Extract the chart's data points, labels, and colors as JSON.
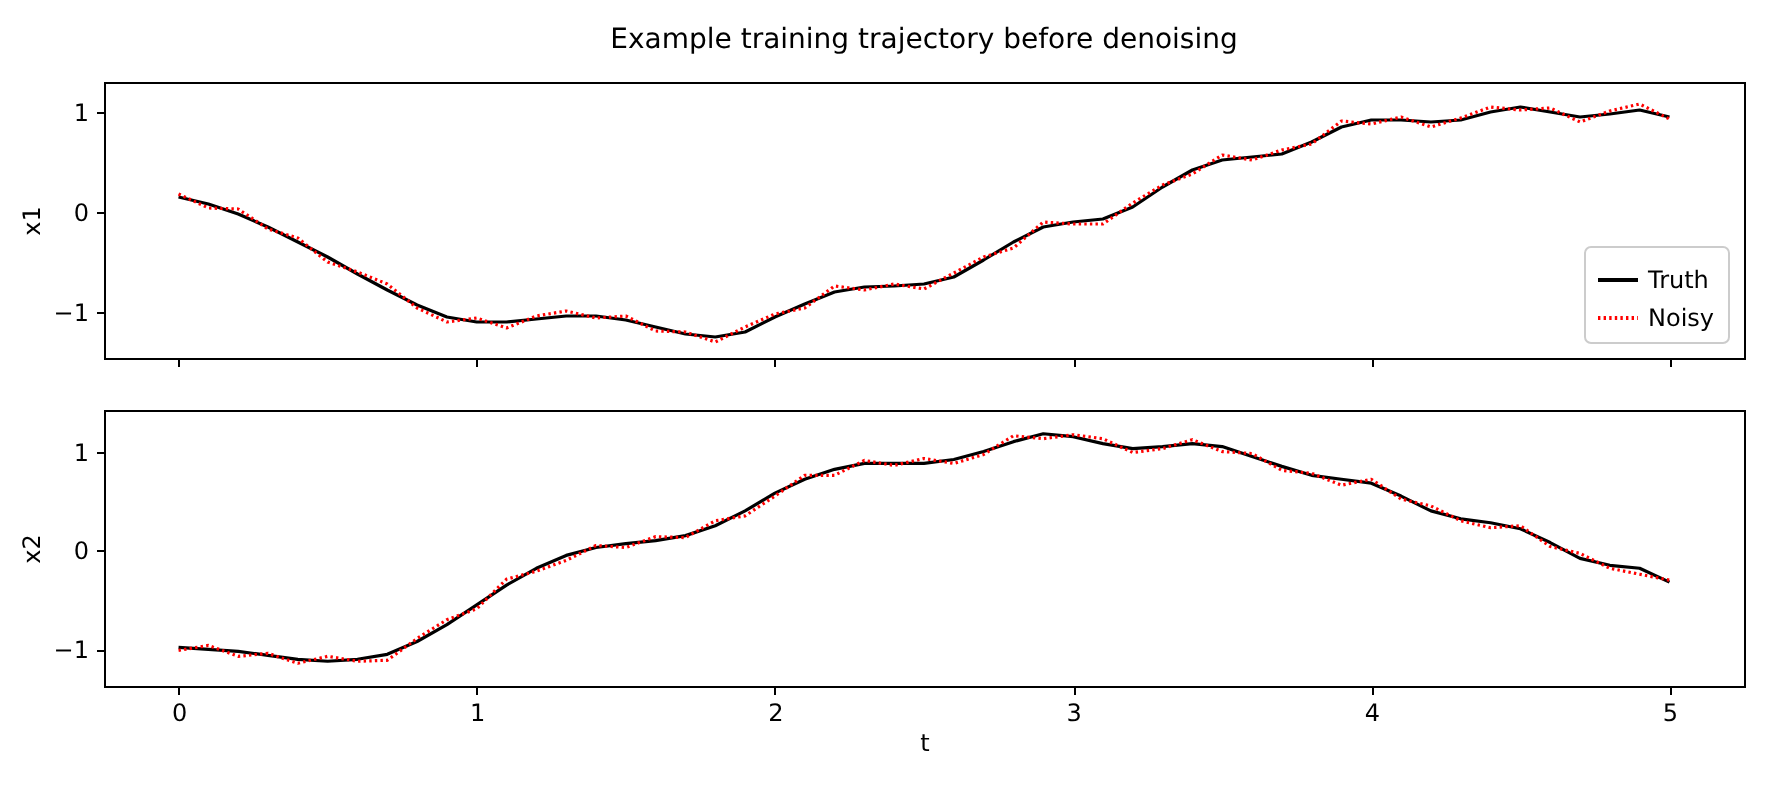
{
  "chart_data": [
    {
      "type": "line",
      "title": "Example training trajectory before denoising",
      "ylabel": "x1",
      "x": [
        0,
        0.1,
        0.2,
        0.3,
        0.4,
        0.5,
        0.6,
        0.7,
        0.8,
        0.9,
        1.0,
        1.1,
        1.2,
        1.3,
        1.4,
        1.5,
        1.6,
        1.7,
        1.8,
        1.9,
        2.0,
        2.1,
        2.2,
        2.3,
        2.4,
        2.5,
        2.6,
        2.7,
        2.8,
        2.9,
        3.0,
        3.1,
        3.2,
        3.3,
        3.4,
        3.5,
        3.6,
        3.7,
        3.8,
        3.9,
        4.0,
        4.1,
        4.2,
        4.3,
        4.4,
        4.5,
        4.6,
        4.7,
        4.8,
        4.9,
        5.0
      ],
      "series": [
        {
          "name": "Truth",
          "color": "#000000",
          "line_style": "solid",
          "values": [
            0.15,
            0.08,
            -0.02,
            -0.15,
            -0.3,
            -0.45,
            -0.62,
            -0.78,
            -0.93,
            -1.05,
            -1.1,
            -1.1,
            -1.07,
            -1.04,
            -1.04,
            -1.08,
            -1.15,
            -1.22,
            -1.25,
            -1.2,
            -1.05,
            -0.92,
            -0.8,
            -0.75,
            -0.74,
            -0.72,
            -0.65,
            -0.48,
            -0.3,
            -0.15,
            -0.1,
            -0.07,
            0.05,
            0.25,
            0.42,
            0.52,
            0.55,
            0.58,
            0.7,
            0.85,
            0.92,
            0.92,
            0.9,
            0.92,
            1.0,
            1.05,
            1.0,
            0.95,
            0.98,
            1.02,
            0.95
          ]
        },
        {
          "name": "Noisy",
          "color": "#ff0000",
          "line_style": "dotted",
          "values": [
            0.18,
            0.04,
            0.03,
            -0.17,
            -0.26,
            -0.5,
            -0.6,
            -0.72,
            -0.96,
            -1.1,
            -1.06,
            -1.16,
            -1.04,
            -0.99,
            -1.06,
            -1.04,
            -1.19,
            -1.2,
            -1.3,
            -1.15,
            -1.02,
            -0.96,
            -0.74,
            -0.78,
            -0.72,
            -0.77,
            -0.61,
            -0.45,
            -0.36,
            -0.1,
            -0.12,
            -0.12,
            0.09,
            0.27,
            0.38,
            0.57,
            0.52,
            0.62,
            0.68,
            0.91,
            0.88,
            0.95,
            0.85,
            0.94,
            1.05,
            1.02,
            1.04,
            0.9,
            1.01,
            1.08,
            0.93
          ]
        }
      ],
      "xlim": [
        -0.25,
        5.25
      ],
      "xticks": [
        0,
        1,
        2,
        3,
        4,
        5
      ],
      "ylim": [
        -1.46,
        1.3
      ],
      "yticks": [
        -1,
        0,
        1
      ],
      "tick_labels": "y",
      "grid": false,
      "legend": "bottom right"
    },
    {
      "type": "line",
      "xlabel": "t",
      "ylabel": "x2",
      "x": [
        0,
        0.1,
        0.2,
        0.3,
        0.4,
        0.5,
        0.6,
        0.7,
        0.8,
        0.9,
        1.0,
        1.1,
        1.2,
        1.3,
        1.4,
        1.5,
        1.6,
        1.7,
        1.8,
        1.9,
        2.0,
        2.1,
        2.2,
        2.3,
        2.4,
        2.5,
        2.6,
        2.7,
        2.8,
        2.9,
        3.0,
        3.1,
        3.2,
        3.3,
        3.4,
        3.5,
        3.6,
        3.7,
        3.8,
        3.9,
        4.0,
        4.1,
        4.2,
        4.3,
        4.4,
        4.5,
        4.6,
        4.7,
        4.8,
        4.9,
        5.0
      ],
      "series": [
        {
          "color": "#000000",
          "line_style": "solid",
          "values": [
            -0.98,
            -1.0,
            -1.02,
            -1.06,
            -1.1,
            -1.12,
            -1.1,
            -1.05,
            -0.92,
            -0.75,
            -0.55,
            -0.35,
            -0.18,
            -0.05,
            0.03,
            0.07,
            0.1,
            0.15,
            0.25,
            0.4,
            0.58,
            0.72,
            0.82,
            0.88,
            0.88,
            0.88,
            0.92,
            1.0,
            1.1,
            1.18,
            1.15,
            1.08,
            1.03,
            1.05,
            1.08,
            1.05,
            0.95,
            0.85,
            0.76,
            0.72,
            0.68,
            0.55,
            0.4,
            0.32,
            0.28,
            0.22,
            0.08,
            -0.08,
            -0.15,
            -0.18,
            -0.32
          ]
        },
        {
          "color": "#ff0000",
          "line_style": "dotted",
          "values": [
            -1.01,
            -0.96,
            -1.07,
            -1.04,
            -1.14,
            -1.07,
            -1.12,
            -1.11,
            -0.89,
            -0.7,
            -0.59,
            -0.29,
            -0.21,
            -0.1,
            0.05,
            0.03,
            0.14,
            0.13,
            0.3,
            0.35,
            0.55,
            0.76,
            0.76,
            0.91,
            0.86,
            0.93,
            0.88,
            0.97,
            1.16,
            1.13,
            1.17,
            1.13,
            0.99,
            1.03,
            1.12,
            1.0,
            0.98,
            0.81,
            0.78,
            0.66,
            0.72,
            0.52,
            0.45,
            0.3,
            0.23,
            0.25,
            0.04,
            -0.03,
            -0.18,
            -0.24,
            -0.3
          ]
        }
      ],
      "xlim": [
        -0.25,
        5.25
      ],
      "xticks": [
        0,
        1,
        2,
        3,
        4,
        5
      ],
      "ylim": [
        -1.37,
        1.42
      ],
      "yticks": [
        -1,
        0,
        1
      ],
      "grid": false,
      "legend": false
    }
  ]
}
